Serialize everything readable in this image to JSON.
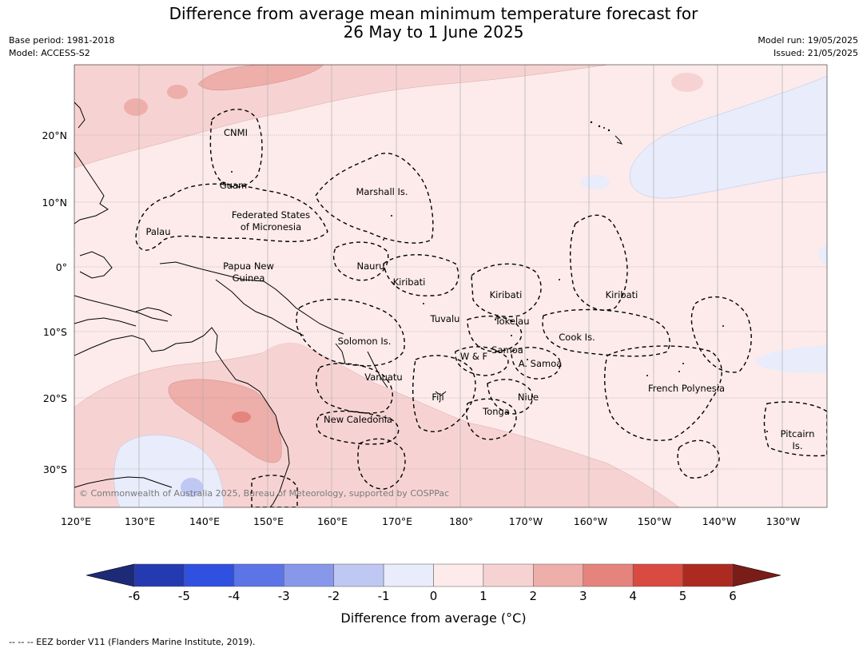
{
  "header": {
    "title_line1": "Difference from average mean minimum temperature forecast for",
    "title_line2": "26 May to 1 June 2025",
    "base_period": "Base period: 1981-2018",
    "model": "Model: ACCESS-S2",
    "model_run": "Model run: 19/05/2025",
    "issued": "Issued: 21/05/2025"
  },
  "map": {
    "lon_ticks": [
      "120°E",
      "130°E",
      "140°E",
      "150°E",
      "160°E",
      "170°E",
      "180°",
      "170°W",
      "160°W",
      "150°W",
      "140°W",
      "130°W"
    ],
    "lat_ticks": [
      "20°N",
      "10°N",
      "0°",
      "10°S",
      "20°S",
      "30°S"
    ],
    "copyright": "© Commonwealth of Australia 2025, Bureau of Meteorology, supported by COSPPac",
    "region_labels": [
      "CNMI",
      "Guam",
      "Marshall Is.",
      "Federated States",
      "of Micronesia",
      "Palau",
      "Papua New",
      "Guinea",
      "Nauru",
      "Kiribati",
      "Kiribati",
      "Kiribati",
      "Tuvalu",
      "Tokelau",
      "Cook Is.",
      "Solomon Is.",
      "Samoa",
      "W & F",
      "A. Samoa",
      "Vanuatu",
      "Fiji",
      "Niue",
      "Tonga",
      "French Polynesia",
      "New Caledonia",
      "Pitcairn",
      "Is."
    ]
  },
  "colorbar": {
    "ticks": [
      "-6",
      "-5",
      "-4",
      "-3",
      "-2",
      "-1",
      "0",
      "1",
      "2",
      "3",
      "4",
      "5",
      "6"
    ],
    "colors": [
      "#243ab0",
      "#3050e0",
      "#5b74e6",
      "#8797ea",
      "#bfc8f3",
      "#e8ecfb",
      "#fcebea",
      "#f6d3d2",
      "#eeaeaa",
      "#e5837d",
      "#d94a41",
      "#ad2a21"
    ],
    "low_extend_color": "#1c2a78",
    "high_extend_color": "#7a1c18",
    "label": "Difference from average (°C)"
  },
  "footnote": "--  --  -- EEZ border V11 (Flanders Marine Institute, 2019)."
}
